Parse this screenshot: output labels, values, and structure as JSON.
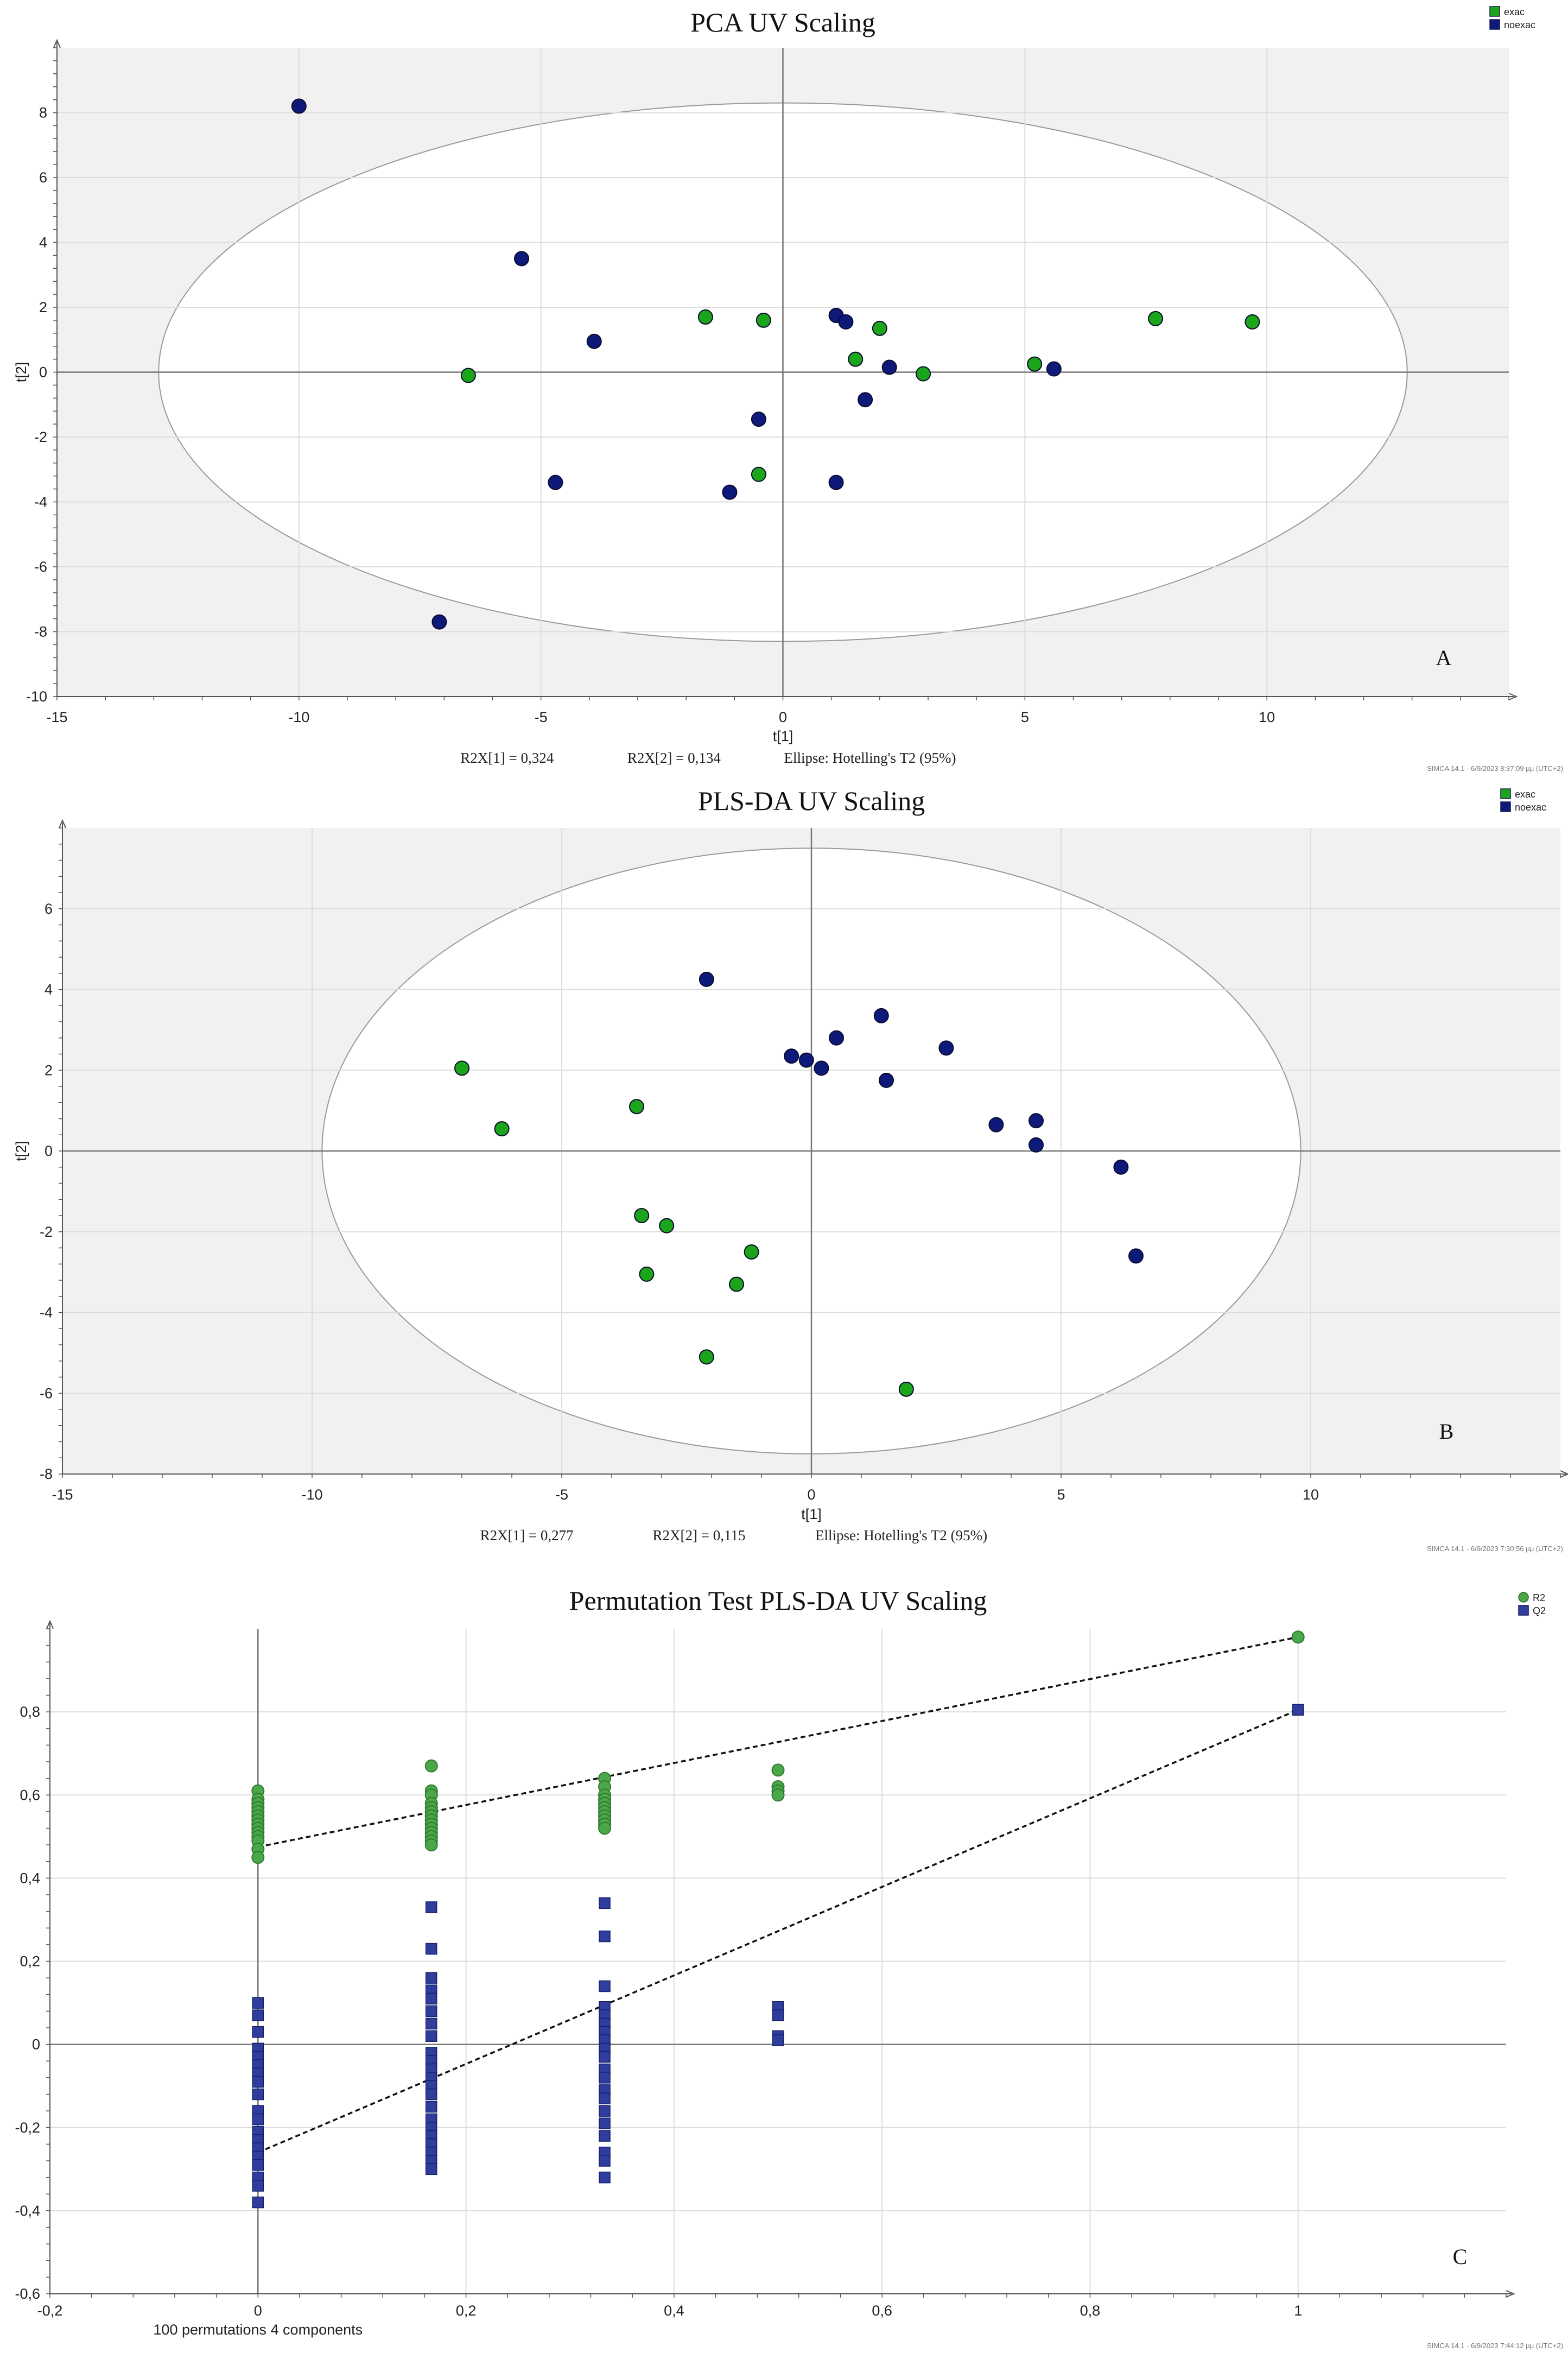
{
  "chart_data": [
    {
      "type": "scatter",
      "title": "PCA UV Scaling",
      "xlabel": "t[1]",
      "ylabel": "t[2]",
      "xlim": [
        -15,
        15
      ],
      "ylim": [
        -10,
        10
      ],
      "x_ticks": [
        -15,
        -10,
        -5,
        0,
        5,
        10
      ],
      "y_ticks": [
        -10,
        -8,
        -6,
        -4,
        -2,
        0,
        2,
        4,
        6,
        8
      ],
      "ellipse": {
        "rx": 12.9,
        "ry": 8.3
      },
      "panel_letter": "A",
      "r2x1": "R2X[1] = 0,324",
      "r2x2": "R2X[2] = 0,134",
      "ellipse_label": "Ellipse: Hotelling's T2 (95%)",
      "stamp": "SIMCA 14.1 - 6/9/2023 8:37:09 μμ (UTC+2)",
      "legend": [
        {
          "name": "exac",
          "color": "#1aa51a"
        },
        {
          "name": "noexac",
          "color": "#0d1a7a"
        }
      ],
      "series": [
        {
          "name": "exac",
          "color": "#1aa51a",
          "points": [
            [
              -6.5,
              -0.1
            ],
            [
              -1.6,
              1.7
            ],
            [
              -0.4,
              1.6
            ],
            [
              1.5,
              0.4
            ],
            [
              2.0,
              1.35
            ],
            [
              2.9,
              -0.05
            ],
            [
              5.2,
              0.25
            ],
            [
              7.7,
              1.65
            ],
            [
              9.7,
              1.55
            ],
            [
              -0.5,
              -3.15
            ]
          ]
        },
        {
          "name": "noexac",
          "color": "#0d1a7a",
          "points": [
            [
              -10.0,
              8.2
            ],
            [
              -5.4,
              3.5
            ],
            [
              -3.9,
              0.95
            ],
            [
              -4.7,
              -3.4
            ],
            [
              -7.1,
              -7.7
            ],
            [
              -0.5,
              -1.45
            ],
            [
              -1.1,
              -3.7
            ],
            [
              1.1,
              1.75
            ],
            [
              1.3,
              1.55
            ],
            [
              2.2,
              0.15
            ],
            [
              1.7,
              -0.85
            ],
            [
              1.1,
              -3.4
            ],
            [
              5.6,
              0.1
            ]
          ]
        }
      ]
    },
    {
      "type": "scatter",
      "title": "PLS-DA UV Scaling",
      "xlabel": "t[1]",
      "ylabel": "t[2]",
      "xlim": [
        -15,
        15
      ],
      "ylim": [
        -8,
        8
      ],
      "x_ticks": [
        -15,
        -10,
        -5,
        0,
        5,
        10
      ],
      "y_ticks": [
        -8,
        -6,
        -4,
        -2,
        0,
        2,
        4,
        6
      ],
      "ellipse": {
        "rx": 9.8,
        "ry": 7.5
      },
      "panel_letter": "B",
      "r2x1": "R2X[1] = 0,277",
      "r2x2": "R2X[2] = 0,115",
      "ellipse_label": "Ellipse: Hotelling's T2 (95%)",
      "stamp": "SIMCA 14.1 - 6/9/2023 7:30:56 μμ (UTC+2)",
      "legend": [
        {
          "name": "exac",
          "color": "#1aa51a"
        },
        {
          "name": "noexac",
          "color": "#0d1a7a"
        }
      ],
      "series": [
        {
          "name": "exac",
          "color": "#1aa51a",
          "points": [
            [
              -7.0,
              2.05
            ],
            [
              -6.2,
              0.55
            ],
            [
              -3.5,
              1.1
            ],
            [
              -3.4,
              -1.6
            ],
            [
              -2.9,
              -1.85
            ],
            [
              -3.3,
              -3.05
            ],
            [
              -1.2,
              -2.5
            ],
            [
              -1.5,
              -3.3
            ],
            [
              -2.1,
              -5.1
            ],
            [
              1.9,
              -5.9
            ]
          ]
        },
        {
          "name": "noexac",
          "color": "#0d1a7a",
          "points": [
            [
              -2.1,
              4.25
            ],
            [
              -0.4,
              2.35
            ],
            [
              -0.1,
              2.25
            ],
            [
              0.2,
              2.05
            ],
            [
              0.5,
              2.8
            ],
            [
              1.4,
              3.35
            ],
            [
              1.5,
              1.75
            ],
            [
              2.7,
              2.55
            ],
            [
              3.7,
              0.65
            ],
            [
              4.5,
              0.75
            ],
            [
              4.5,
              0.15
            ],
            [
              6.2,
              -0.4
            ],
            [
              6.5,
              -2.6
            ]
          ]
        }
      ]
    },
    {
      "type": "scatter",
      "title": "Permutation Test PLS-DA UV Scaling",
      "xlabel": "100 permutations 4 components",
      "ylabel": "",
      "xlim": [
        -0.2,
        1.2
      ],
      "ylim": [
        -0.6,
        1.0
      ],
      "x_ticks": [
        -0.2,
        0,
        0.2,
        0.4,
        0.6,
        0.8,
        1
      ],
      "y_ticks": [
        -0.6,
        -0.4,
        -0.2,
        0,
        0.2,
        0.4,
        0.6,
        0.8
      ],
      "tick_decimal": ",",
      "panel_letter": "C",
      "stamp": "SIMCA 14.1 - 6/9/2023 7:44:12 μμ (UTC+2)",
      "legend": [
        {
          "name": "R2",
          "color": "#4aa84a",
          "marker": "circle"
        },
        {
          "name": "Q2",
          "color": "#2e3d9e",
          "marker": "square"
        }
      ],
      "regression_lines": [
        {
          "name": "R2",
          "from": [
            0,
            0.475
          ],
          "to": [
            1,
            0.98
          ]
        },
        {
          "name": "Q2",
          "from": [
            0,
            -0.26
          ],
          "to": [
            1,
            0.805
          ]
        }
      ],
      "series": [
        {
          "name": "R2",
          "color": "#4aa84a",
          "marker": "circle",
          "points": [
            [
              0,
              0.61
            ],
            [
              0,
              0.59
            ],
            [
              0,
              0.58
            ],
            [
              0,
              0.57
            ],
            [
              0,
              0.56
            ],
            [
              0,
              0.55
            ],
            [
              0,
              0.54
            ],
            [
              0,
              0.53
            ],
            [
              0,
              0.52
            ],
            [
              0,
              0.51
            ],
            [
              0,
              0.5
            ],
            [
              0,
              0.49
            ],
            [
              0,
              0.47
            ],
            [
              0,
              0.45
            ],
            [
              0.1667,
              0.67
            ],
            [
              0.1667,
              0.61
            ],
            [
              0.1667,
              0.6
            ],
            [
              0.1667,
              0.58
            ],
            [
              0.1667,
              0.57
            ],
            [
              0.1667,
              0.56
            ],
            [
              0.1667,
              0.55
            ],
            [
              0.1667,
              0.54
            ],
            [
              0.1667,
              0.53
            ],
            [
              0.1667,
              0.52
            ],
            [
              0.1667,
              0.51
            ],
            [
              0.1667,
              0.5
            ],
            [
              0.1667,
              0.49
            ],
            [
              0.1667,
              0.48
            ],
            [
              0.3333,
              0.64
            ],
            [
              0.3333,
              0.62
            ],
            [
              0.3333,
              0.6
            ],
            [
              0.3333,
              0.59
            ],
            [
              0.3333,
              0.58
            ],
            [
              0.3333,
              0.57
            ],
            [
              0.3333,
              0.56
            ],
            [
              0.3333,
              0.55
            ],
            [
              0.3333,
              0.54
            ],
            [
              0.3333,
              0.53
            ],
            [
              0.3333,
              0.52
            ],
            [
              0.5,
              0.66
            ],
            [
              0.5,
              0.62
            ],
            [
              0.5,
              0.61
            ],
            [
              0.5,
              0.6
            ],
            [
              1,
              0.98
            ]
          ]
        },
        {
          "name": "Q2",
          "color": "#2e3d9e",
          "marker": "square",
          "points": [
            [
              0,
              0.1
            ],
            [
              0,
              0.07
            ],
            [
              0,
              0.03
            ],
            [
              0,
              -0.01
            ],
            [
              0,
              -0.03
            ],
            [
              0,
              -0.05
            ],
            [
              0,
              -0.07
            ],
            [
              0,
              -0.09
            ],
            [
              0,
              -0.12
            ],
            [
              0,
              -0.16
            ],
            [
              0,
              -0.18
            ],
            [
              0,
              -0.21
            ],
            [
              0,
              -0.23
            ],
            [
              0,
              -0.25
            ],
            [
              0,
              -0.27
            ],
            [
              0,
              -0.29
            ],
            [
              0,
              -0.32
            ],
            [
              0,
              -0.34
            ],
            [
              0,
              -0.38
            ],
            [
              0.1667,
              0.33
            ],
            [
              0.1667,
              0.23
            ],
            [
              0.1667,
              0.16
            ],
            [
              0.1667,
              0.13
            ],
            [
              0.1667,
              0.11
            ],
            [
              0.1667,
              0.08
            ],
            [
              0.1667,
              0.05
            ],
            [
              0.1667,
              0.02
            ],
            [
              0.1667,
              -0.02
            ],
            [
              0.1667,
              -0.04
            ],
            [
              0.1667,
              -0.06
            ],
            [
              0.1667,
              -0.08
            ],
            [
              0.1667,
              -0.1
            ],
            [
              0.1667,
              -0.12
            ],
            [
              0.1667,
              -0.15
            ],
            [
              0.1667,
              -0.18
            ],
            [
              0.1667,
              -0.2
            ],
            [
              0.1667,
              -0.22
            ],
            [
              0.1667,
              -0.24
            ],
            [
              0.1667,
              -0.26
            ],
            [
              0.1667,
              -0.28
            ],
            [
              0.1667,
              -0.3
            ],
            [
              0.3333,
              0.34
            ],
            [
              0.3333,
              0.26
            ],
            [
              0.3333,
              0.14
            ],
            [
              0.3333,
              0.09
            ],
            [
              0.3333,
              0.07
            ],
            [
              0.3333,
              0.05
            ],
            [
              0.3333,
              0.03
            ],
            [
              0.3333,
              0.01
            ],
            [
              0.3333,
              -0.01
            ],
            [
              0.3333,
              -0.03
            ],
            [
              0.3333,
              -0.06
            ],
            [
              0.3333,
              -0.08
            ],
            [
              0.3333,
              -0.11
            ],
            [
              0.3333,
              -0.13
            ],
            [
              0.3333,
              -0.16
            ],
            [
              0.3333,
              -0.19
            ],
            [
              0.3333,
              -0.22
            ],
            [
              0.3333,
              -0.26
            ],
            [
              0.3333,
              -0.28
            ],
            [
              0.3333,
              -0.32
            ],
            [
              0.5,
              0.09
            ],
            [
              0.5,
              0.07
            ],
            [
              0.5,
              0.02
            ],
            [
              0.5,
              0.01
            ],
            [
              1,
              0.805
            ]
          ]
        }
      ]
    }
  ]
}
